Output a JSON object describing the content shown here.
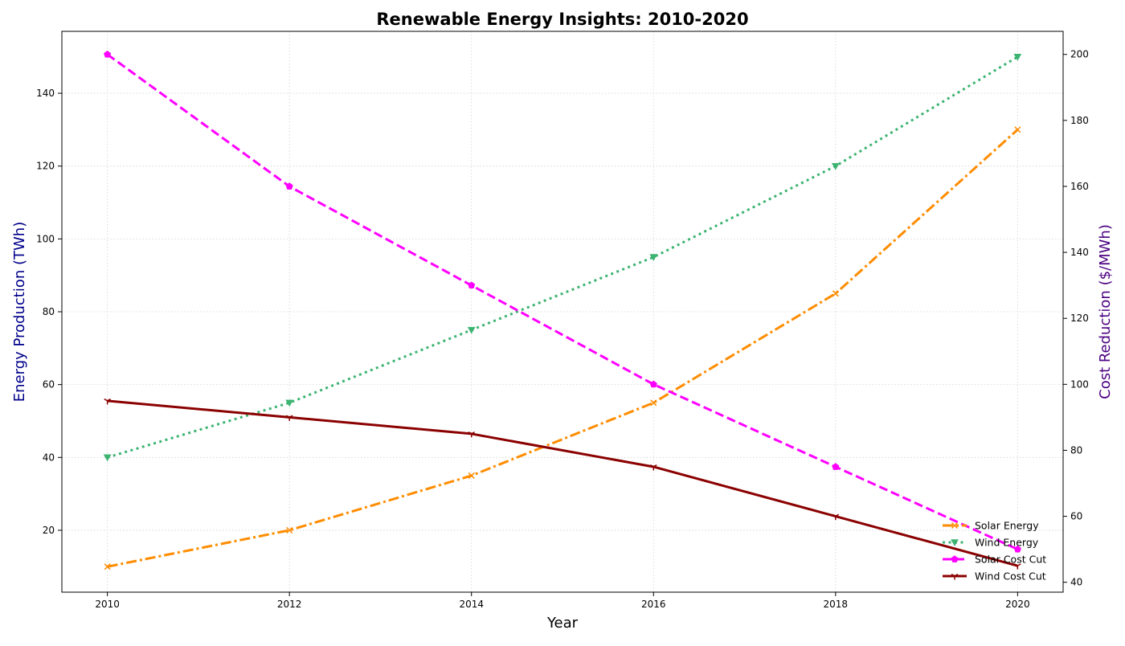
{
  "chart_data": {
    "type": "line",
    "title": "Renewable Energy Insights: 2010-2020",
    "xlabel": "Year",
    "ylabel_left": "Energy Production (TWh)",
    "ylabel_right": "Cost Reduction ($/MWh)",
    "x": [
      2010,
      2012,
      2014,
      2016,
      2018,
      2020
    ],
    "xlim": [
      2009.5,
      2020.5
    ],
    "ylim_left": [
      3,
      157
    ],
    "ylim_right": [
      37,
      207
    ],
    "xticks": [
      "2010",
      "2012",
      "2014",
      "2016",
      "2018",
      "2020"
    ],
    "yticks_left": [
      "20",
      "40",
      "60",
      "80",
      "100",
      "120",
      "140"
    ],
    "yticks_right": [
      "40",
      "60",
      "80",
      "100",
      "120",
      "140",
      "160",
      "180",
      "200"
    ],
    "grid": true,
    "legend_position": "bottom-right",
    "series": [
      {
        "name": "Solar Energy",
        "axis": "left",
        "values": [
          10,
          20,
          35,
          55,
          85,
          130
        ],
        "color": "#ff8c00",
        "dash": "dashdot",
        "marker": "x"
      },
      {
        "name": "Wind Energy",
        "axis": "left",
        "values": [
          40,
          55,
          75,
          95,
          120,
          150
        ],
        "color": "#3cb371",
        "dash": "dotted",
        "marker": "triangle-down"
      },
      {
        "name": "Solar Cost Cut",
        "axis": "right",
        "values": [
          200,
          160,
          130,
          100,
          75,
          50
        ],
        "color": "#ff00ff",
        "dash": "dashed",
        "marker": "pentagon"
      },
      {
        "name": "Wind Cost Cut",
        "axis": "right",
        "values": [
          95,
          90,
          85,
          75,
          60,
          45
        ],
        "color": "#8b0000",
        "dash": "solid",
        "marker": "tri-down"
      }
    ],
    "colors": {
      "ylabel_left": "#00008b",
      "ylabel_right": "#4b0082",
      "grid": "#d3d3d3"
    }
  }
}
